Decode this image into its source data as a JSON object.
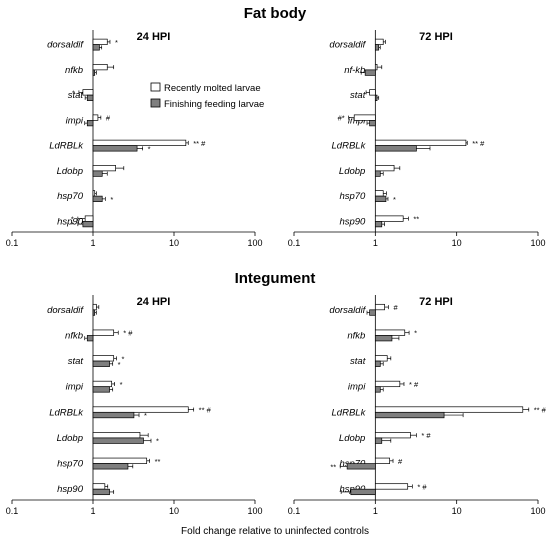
{
  "figure": {
    "sections": [
      "Fat body",
      "Integument"
    ],
    "xlabel": "Fold change relative to uninfected controls",
    "legend": [
      "Recently molted larvae",
      "Finishing feeding larvae"
    ],
    "colors": {
      "recent": "#ffffff",
      "finishing": "#7f7f7f",
      "stroke": "#000000"
    }
  },
  "chart_data": [
    {
      "type": "bar",
      "section": "Fat body",
      "title": "24 HPI",
      "x_scale": "log",
      "xlim": [
        0.1,
        100
      ],
      "x_ticks": [
        "0.1",
        "1",
        "10",
        "100"
      ],
      "categories": [
        "dorsaldif",
        "nfkb",
        "stat",
        "impi",
        "LdRBLk",
        "Ldobp",
        "hsp70",
        "hsp90"
      ],
      "series": [
        {
          "name": "Recently molted larvae",
          "values": [
            1.5,
            1.5,
            0.75,
            1.15,
            14,
            1.9,
            1.05,
            0.8
          ],
          "errors": [
            0.12,
            0.3,
            0.08,
            0.1,
            1.0,
            0.5,
            0.05,
            0.15
          ],
          "sig": [
            "*",
            "",
            "*",
            "#",
            "** #",
            "",
            "",
            "*"
          ]
        },
        {
          "name": "Finishing feeding larvae",
          "values": [
            1.2,
            1.05,
            0.85,
            0.85,
            3.5,
            1.3,
            1.3,
            0.75
          ],
          "errors": [
            0.08,
            0.05,
            0.05,
            0.06,
            0.6,
            0.2,
            0.12,
            0.1
          ],
          "sig": [
            "",
            "",
            "",
            "",
            "*",
            "",
            "*",
            "*"
          ]
        }
      ]
    },
    {
      "type": "bar",
      "section": "Fat body",
      "title": "72 HPI",
      "x_scale": "log",
      "xlim": [
        0.1,
        100
      ],
      "x_ticks": [
        "0.1",
        "1",
        "10",
        "100"
      ],
      "categories": [
        "dorsaldif",
        "nf-kb",
        "stat",
        "impi",
        "LdRBLk",
        "Ldobp",
        "hsp70",
        "hsp90"
      ],
      "series": [
        {
          "name": "Recently molted larvae",
          "values": [
            1.25,
            1.05,
            0.85,
            0.55,
            13,
            1.7,
            1.25,
            2.2
          ],
          "errors": [
            0.08,
            0.15,
            0.08,
            0.08,
            0.5,
            0.3,
            0.12,
            0.35
          ],
          "sig": [
            "",
            "",
            "",
            "#*",
            "** #",
            "",
            "",
            "**"
          ]
        },
        {
          "name": "Finishing feeding larvae",
          "values": [
            1.1,
            0.75,
            1.05,
            0.85,
            3.2,
            1.15,
            1.35,
            1.2
          ],
          "errors": [
            0.05,
            0.08,
            0.05,
            0.06,
            1.5,
            0.1,
            0.08,
            0.1
          ],
          "sig": [
            "",
            "",
            "",
            "",
            "",
            "",
            "*",
            ""
          ]
        }
      ]
    },
    {
      "type": "bar",
      "section": "Integument",
      "title": "24 HPI",
      "x_scale": "log",
      "xlim": [
        0.1,
        100
      ],
      "x_ticks": [
        "0.1",
        "1",
        "10",
        "100"
      ],
      "categories": [
        "dorsaldif",
        "nfkb",
        "stat",
        "impi",
        "LdRBLk",
        "Ldobp",
        "hsp70",
        "hsp90"
      ],
      "series": [
        {
          "name": "Recently molted larvae",
          "values": [
            1.1,
            1.8,
            1.8,
            1.7,
            15,
            3.8,
            4.6,
            1.4
          ],
          "errors": [
            0.08,
            0.25,
            0.15,
            0.15,
            2.5,
            1.0,
            0.4,
            0.12
          ],
          "sig": [
            "",
            "* #",
            "*",
            "*",
            "** #",
            "",
            "**",
            ""
          ]
        },
        {
          "name": "Finishing feeding larvae",
          "values": [
            1.05,
            0.85,
            1.6,
            1.6,
            3.2,
            4.2,
            2.7,
            1.6
          ],
          "errors": [
            0.05,
            0.06,
            0.15,
            0.15,
            0.5,
            1.0,
            0.4,
            0.2
          ],
          "sig": [
            "",
            "",
            "*",
            "",
            "*",
            "*",
            "",
            ""
          ]
        }
      ]
    },
    {
      "type": "bar",
      "section": "Integument",
      "title": "72 HPI",
      "x_scale": "log",
      "xlim": [
        0.1,
        100
      ],
      "x_ticks": [
        "0.1",
        "1",
        "10",
        "100"
      ],
      "categories": [
        "dorsaldif",
        "nfkb",
        "stat",
        "impi",
        "LdRBLk",
        "Ldobp",
        "hsp70",
        "hsp90"
      ],
      "series": [
        {
          "name": "Recently molted larvae",
          "values": [
            1.3,
            2.3,
            1.4,
            2.0,
            65,
            2.7,
            1.5,
            2.5
          ],
          "errors": [
            0.15,
            0.3,
            0.15,
            0.25,
            12,
            0.5,
            0.15,
            0.35
          ],
          "sig": [
            "#",
            "*",
            "",
            "* #",
            "** #",
            "* #",
            "#",
            "* #"
          ]
        },
        {
          "name": "Finishing feeding larvae",
          "values": [
            0.85,
            1.6,
            1.15,
            1.15,
            7,
            1.2,
            0.45,
            0.5
          ],
          "errors": [
            0.06,
            0.35,
            0.1,
            0.1,
            5,
            0.35,
            0.08,
            0.12
          ],
          "sig": [
            "",
            "",
            "",
            "",
            "",
            "",
            "**",
            ""
          ]
        }
      ]
    }
  ]
}
